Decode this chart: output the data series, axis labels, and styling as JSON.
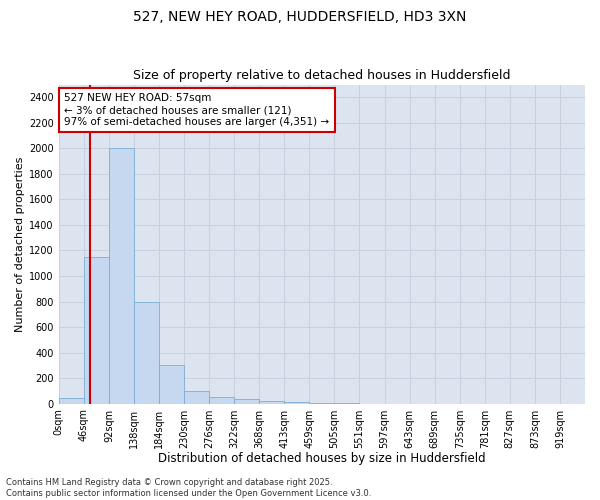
{
  "title1": "527, NEW HEY ROAD, HUDDERSFIELD, HD3 3XN",
  "title2": "Size of property relative to detached houses in Huddersfield",
  "xlabel": "Distribution of detached houses by size in Huddersfield",
  "ylabel": "Number of detached properties",
  "bin_labels": [
    "0sqm",
    "46sqm",
    "92sqm",
    "138sqm",
    "184sqm",
    "230sqm",
    "276sqm",
    "322sqm",
    "368sqm",
    "413sqm",
    "459sqm",
    "505sqm",
    "551sqm",
    "597sqm",
    "643sqm",
    "689sqm",
    "735sqm",
    "781sqm",
    "827sqm",
    "873sqm",
    "919sqm"
  ],
  "bar_heights": [
    40,
    1150,
    2000,
    800,
    300,
    100,
    50,
    35,
    20,
    10,
    5,
    3,
    0,
    0,
    0,
    0,
    0,
    0,
    0,
    0,
    0
  ],
  "bar_color": "#c5d8ef",
  "bar_edge_color": "#7badd4",
  "grid_color": "#c8d0e0",
  "bg_color": "#dce4f0",
  "vline_x": 57,
  "vline_color": "#cc0000",
  "annotation_text": "527 NEW HEY ROAD: 57sqm\n← 3% of detached houses are smaller (121)\n97% of semi-detached houses are larger (4,351) →",
  "annotation_box_color": "#cc0000",
  "ylim": [
    0,
    2500
  ],
  "yticks": [
    0,
    200,
    400,
    600,
    800,
    1000,
    1200,
    1400,
    1600,
    1800,
    2000,
    2200,
    2400
  ],
  "footnote": "Contains HM Land Registry data © Crown copyright and database right 2025.\nContains public sector information licensed under the Open Government Licence v3.0.",
  "title1_fontsize": 10,
  "title2_fontsize": 9,
  "xlabel_fontsize": 8.5,
  "ylabel_fontsize": 8,
  "tick_fontsize": 7,
  "annot_fontsize": 7.5,
  "footnote_fontsize": 6
}
